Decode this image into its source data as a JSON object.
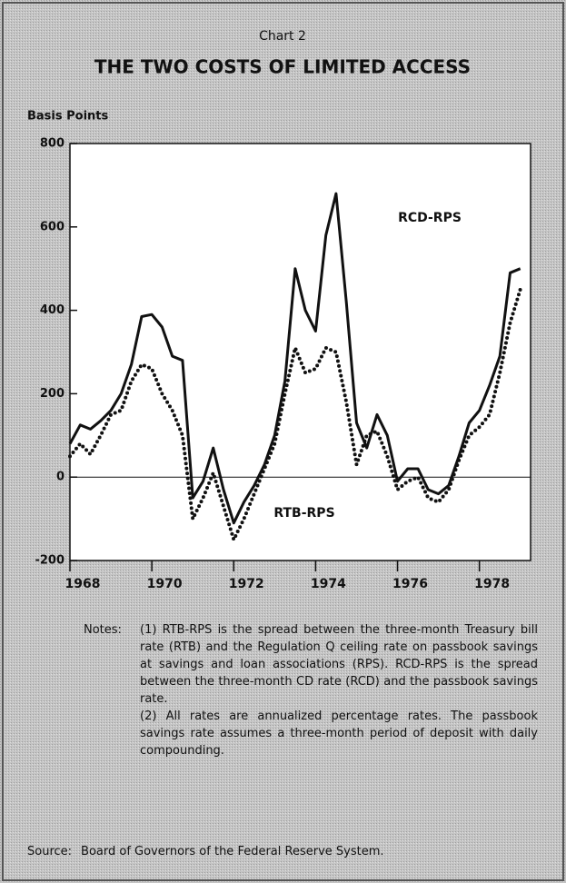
{
  "chart_data": {
    "type": "line",
    "kicker": "Chart 2",
    "title": "THE TWO COSTS OF LIMITED ACCESS",
    "ylabel": "Basis Points",
    "x": [
      1968,
      1968.25,
      1968.5,
      1968.75,
      1969,
      1969.25,
      1969.5,
      1969.75,
      1970,
      1970.25,
      1970.5,
      1970.75,
      1971,
      1971.25,
      1971.5,
      1971.75,
      1972,
      1972.25,
      1972.5,
      1972.75,
      1973,
      1973.25,
      1973.5,
      1973.75,
      1974,
      1974.25,
      1974.5,
      1974.75,
      1975,
      1975.25,
      1975.5,
      1975.75,
      1976,
      1976.25,
      1976.5,
      1976.75,
      1977,
      1977.25,
      1977.5,
      1977.75,
      1978,
      1978.25,
      1978.5,
      1978.75,
      1979
    ],
    "series": [
      {
        "name": "RCD-RPS",
        "color": "#111111",
        "style": "solid",
        "values": [
          80,
          125,
          115,
          135,
          160,
          200,
          270,
          385,
          390,
          360,
          290,
          280,
          -50,
          -10,
          70,
          -30,
          -110,
          -60,
          -20,
          30,
          100,
          230,
          500,
          400,
          350,
          580,
          680,
          420,
          130,
          70,
          150,
          100,
          -10,
          20,
          20,
          -30,
          -40,
          -20,
          50,
          130,
          160,
          220,
          290,
          490,
          500
        ]
      },
      {
        "name": "RTB-RPS",
        "color": "#111111",
        "style": "dotted",
        "values": [
          50,
          80,
          55,
          100,
          150,
          160,
          230,
          270,
          260,
          200,
          160,
          100,
          -100,
          -50,
          10,
          -70,
          -150,
          -100,
          -40,
          20,
          80,
          200,
          310,
          250,
          260,
          310,
          300,
          180,
          30,
          100,
          110,
          50,
          -30,
          -10,
          0,
          -50,
          -60,
          -30,
          40,
          100,
          120,
          150,
          250,
          370,
          450
        ]
      }
    ],
    "xlim": [
      1968,
      1979.25
    ],
    "xticks": [
      1968,
      1970,
      1972,
      1974,
      1976,
      1978
    ],
    "ylim": [
      -200,
      800
    ],
    "yticks": [
      {
        "value": -200,
        "label": "-200"
      },
      0,
      200,
      400,
      600,
      800
    ],
    "notes_label": "Notes:",
    "notes": [
      "(1) RTB-RPS is the spread between the three-month Treasury bill rate (RTB) and the Regulation Q ceiling rate on passbook savings at savings and loan associations (RPS). RCD-RPS is the spread between the three-month CD rate (RCD) and the passbook savings rate.",
      "(2) All rates are annualized percentage rates. The passbook savings rate assumes a three-month period of deposit with daily compounding."
    ],
    "source_label": "Source:",
    "source": "Board of Governors of the Federal Reserve System."
  }
}
